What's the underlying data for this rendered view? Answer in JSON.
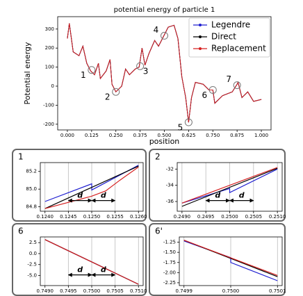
{
  "chart_data": [
    {
      "type": "line",
      "title": "potential energy of particle 1",
      "x_label": "position",
      "y_label": "Potential energy",
      "x": [
        0.0,
        0.01,
        0.03,
        0.06,
        0.08,
        0.1,
        0.12,
        0.14,
        0.16,
        0.17,
        0.2,
        0.22,
        0.23,
        0.25,
        0.28,
        0.3,
        0.32,
        0.35,
        0.37,
        0.385,
        0.4,
        0.42,
        0.45,
        0.47,
        0.5,
        0.52,
        0.55,
        0.57,
        0.59,
        0.61,
        0.625,
        0.64,
        0.66,
        0.7,
        0.73,
        0.75,
        0.76,
        0.8,
        0.85,
        0.875,
        0.88,
        0.9,
        0.93,
        0.96,
        1.0
      ],
      "series": [
        {
          "name": "Legendre",
          "color": "#1f1fd0",
          "values": [
            250,
            330,
            180,
            160,
            210,
            120,
            80,
            60,
            120,
            40,
            80,
            140,
            10,
            -30,
            0,
            90,
            60,
            90,
            100,
            200,
            110,
            170,
            240,
            210,
            270,
            310,
            320,
            250,
            50,
            -60,
            -190,
            -60,
            20,
            10,
            -20,
            -20,
            -90,
            -50,
            -30,
            10,
            20,
            -60,
            -30,
            -80,
            -70
          ]
        },
        {
          "name": "Direct",
          "color": "#000000",
          "values": [
            250,
            330,
            180,
            160,
            210,
            120,
            80,
            60,
            120,
            40,
            80,
            140,
            10,
            -30,
            0,
            90,
            60,
            90,
            100,
            200,
            110,
            170,
            240,
            210,
            270,
            310,
            320,
            250,
            50,
            -60,
            -190,
            -60,
            20,
            10,
            -20,
            -20,
            -90,
            -50,
            -30,
            10,
            20,
            -60,
            -30,
            -80,
            -70
          ]
        },
        {
          "name": "Replacement",
          "color": "#d62020",
          "values": [
            250,
            330,
            180,
            160,
            210,
            120,
            80,
            60,
            120,
            40,
            80,
            140,
            10,
            -30,
            0,
            90,
            60,
            90,
            100,
            200,
            110,
            170,
            240,
            210,
            270,
            310,
            320,
            250,
            50,
            -60,
            -190,
            -60,
            20,
            10,
            -20,
            -20,
            -90,
            -50,
            -30,
            10,
            20,
            -60,
            -30,
            -80,
            -70
          ]
        }
      ],
      "xlim": [
        -0.05,
        1.05
      ],
      "ylim": [
        -230,
        365
      ],
      "xticks": [
        {
          "value": 0,
          "label": "0.000"
        },
        0.125,
        {
          "value": 0.25,
          "label": "0.250"
        },
        0.375,
        {
          "value": 0.5,
          "label": "0.500"
        },
        0.625,
        {
          "value": 0.75,
          "label": "0.750"
        },
        0.875,
        {
          "value": 1,
          "label": "1.000"
        }
      ],
      "yticks": [
        -200,
        -100,
        0,
        100,
        200,
        300
      ],
      "legend": "upper right",
      "annotations": [
        {
          "label": "1",
          "x": 0.125,
          "y": 85
        },
        {
          "label": "2",
          "x": 0.25,
          "y": -30
        },
        {
          "label": "3",
          "x": 0.375,
          "y": 105
        },
        {
          "label": "4",
          "x": 0.5,
          "y": 265
        },
        {
          "label": "5",
          "x": 0.625,
          "y": -190
        },
        {
          "label": "6",
          "x": 0.75,
          "y": -20
        },
        {
          "label": "7",
          "x": 0.875,
          "y": 5
        }
      ]
    },
    {
      "type": "line",
      "title": "1",
      "xlim": [
        0.1239,
        0.1261
      ],
      "ylim": [
        84.75,
        85.3
      ],
      "xticks": [
        {
          "value": 0.124,
          "label": "0.1240"
        },
        0.1245,
        {
          "value": 0.125,
          "label": "0.1250"
        },
        0.1255,
        {
          "value": 0.126,
          "label": "0.1260"
        }
      ],
      "yticks": [
        84.8,
        {
          "value": 85,
          "label": "85.0"
        },
        85.2
      ],
      "grid": "x",
      "series": [
        {
          "color": "#1f1fd0",
          "x": [
            0.124,
            0.125,
            0.125,
            0.126
          ],
          "values": [
            84.86,
            85.06,
            84.99,
            85.27
          ]
        },
        {
          "color": "#000000",
          "x": [
            0.124,
            0.126
          ],
          "values": [
            84.78,
            85.26
          ]
        },
        {
          "color": "#d62020",
          "x": [
            0.124,
            0.125,
            0.1253,
            0.1256,
            0.126
          ],
          "values": [
            84.78,
            84.92,
            84.98,
            85.1,
            85.25
          ]
        }
      ],
      "d_label": "d",
      "arrows": [
        [
          0.1245,
          0.125
        ],
        [
          0.125,
          0.1255
        ]
      ]
    },
    {
      "type": "line",
      "title": "2",
      "xlim": [
        0.2489,
        0.2511
      ],
      "ylim": [
        -37.2,
        -31.2
      ],
      "xticks": [
        {
          "value": 0.249,
          "label": "0.2490"
        },
        0.2495,
        {
          "value": 0.25,
          "label": "0.2500"
        },
        0.2505,
        {
          "value": 0.251,
          "label": "0.2510"
        }
      ],
      "yticks": [
        -32,
        -34,
        -36
      ],
      "grid": "x",
      "series": [
        {
          "color": "#1f1fd0",
          "x": [
            0.249,
            0.25,
            0.25,
            0.251
          ],
          "values": [
            -36.2,
            -34.4,
            -34.9,
            -32.0
          ]
        },
        {
          "color": "#000000",
          "x": [
            0.249,
            0.251
          ],
          "values": [
            -36.6,
            -31.9
          ]
        },
        {
          "color": "#d62020",
          "x": [
            0.249,
            0.251
          ],
          "values": [
            -36.2,
            -31.8
          ]
        }
      ],
      "d_label": "d",
      "arrows": [
        [
          0.2495,
          0.25
        ],
        [
          0.25,
          0.2505
        ]
      ]
    },
    {
      "type": "line",
      "title": "6",
      "xlim": [
        0.7489,
        0.7511
      ],
      "ylim": [
        -7.3,
        3.8
      ],
      "xticks": [
        {
          "value": 0.749,
          "label": "0.7490"
        },
        0.7495,
        {
          "value": 0.75,
          "label": "0.7500"
        },
        0.7505,
        {
          "value": 0.751,
          "label": "0.7510"
        }
      ],
      "yticks": [
        2.5,
        {
          "value": 0,
          "label": "0.0"
        },
        -2.5,
        {
          "value": -5,
          "label": "-5.0"
        }
      ],
      "grid": "x",
      "series": [
        {
          "color": "#1f1fd0",
          "x": [
            0.749,
            0.751
          ],
          "values": [
            3.2,
            -7.0
          ]
        },
        {
          "color": "#000000",
          "x": [
            0.749,
            0.751
          ],
          "values": [
            3.2,
            -7.0
          ]
        },
        {
          "color": "#d62020",
          "x": [
            0.749,
            0.751
          ],
          "values": [
            3.2,
            -7.0
          ]
        }
      ],
      "d_label": "d",
      "arrows": [
        [
          0.7495,
          0.75
        ],
        [
          0.75,
          0.7505
        ]
      ]
    },
    {
      "type": "line",
      "title": "6'",
      "xlim": [
        0.74989,
        0.75011
      ],
      "ylim": [
        -2.32,
        -1.12
      ],
      "xticks": [
        {
          "value": 0.7499,
          "label": "0.7499"
        },
        {
          "value": 0.75,
          "label": "0.7500"
        },
        0.7501
      ],
      "yticks": [
        -1.25,
        {
          "value": -1.5,
          "label": "-1.50"
        },
        -1.75,
        {
          "value": -2,
          "label": "-2.00"
        },
        -2.25
      ],
      "grid": "x",
      "series": [
        {
          "color": "#1f1fd0",
          "x": [
            0.7499,
            0.75,
            0.75,
            0.7501
          ],
          "values": [
            -1.22,
            -1.63,
            -1.75,
            -2.2
          ]
        },
        {
          "color": "#000000",
          "x": [
            0.7499,
            0.7501
          ],
          "values": [
            -1.2,
            -2.1
          ]
        },
        {
          "color": "#d62020",
          "x": [
            0.7499,
            0.7501
          ],
          "values": [
            -1.2,
            -2.07
          ]
        }
      ]
    }
  ]
}
